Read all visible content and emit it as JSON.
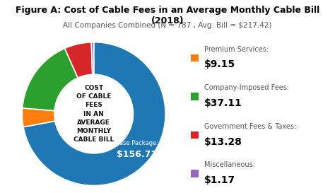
{
  "chart_data": {
    "type": "pie",
    "title": "Figure A: Cost of Cable Fees in an Average Monthly Cable Bill (2018)",
    "subtitle": "All Companies Combined (N = 787 , Avg. Bill = $217.42)",
    "center_text": [
      "COST",
      "OF CABLE",
      "FEES",
      "IN AN",
      "AVERAGE",
      "MONTHLY",
      "CABLE BILL"
    ],
    "categories": [
      "Base Package:",
      "Premium Services:",
      "Company-Imposed Fees:",
      "Government Fees & Taxes:",
      "Miscellaneous:"
    ],
    "values": [
      156.71,
      9.15,
      37.11,
      13.28,
      1.17
    ],
    "value_labels": [
      "$156.71",
      "$9.15",
      "$37.11",
      "$13.28",
      "$1.17"
    ],
    "data_labels": true
  }
}
